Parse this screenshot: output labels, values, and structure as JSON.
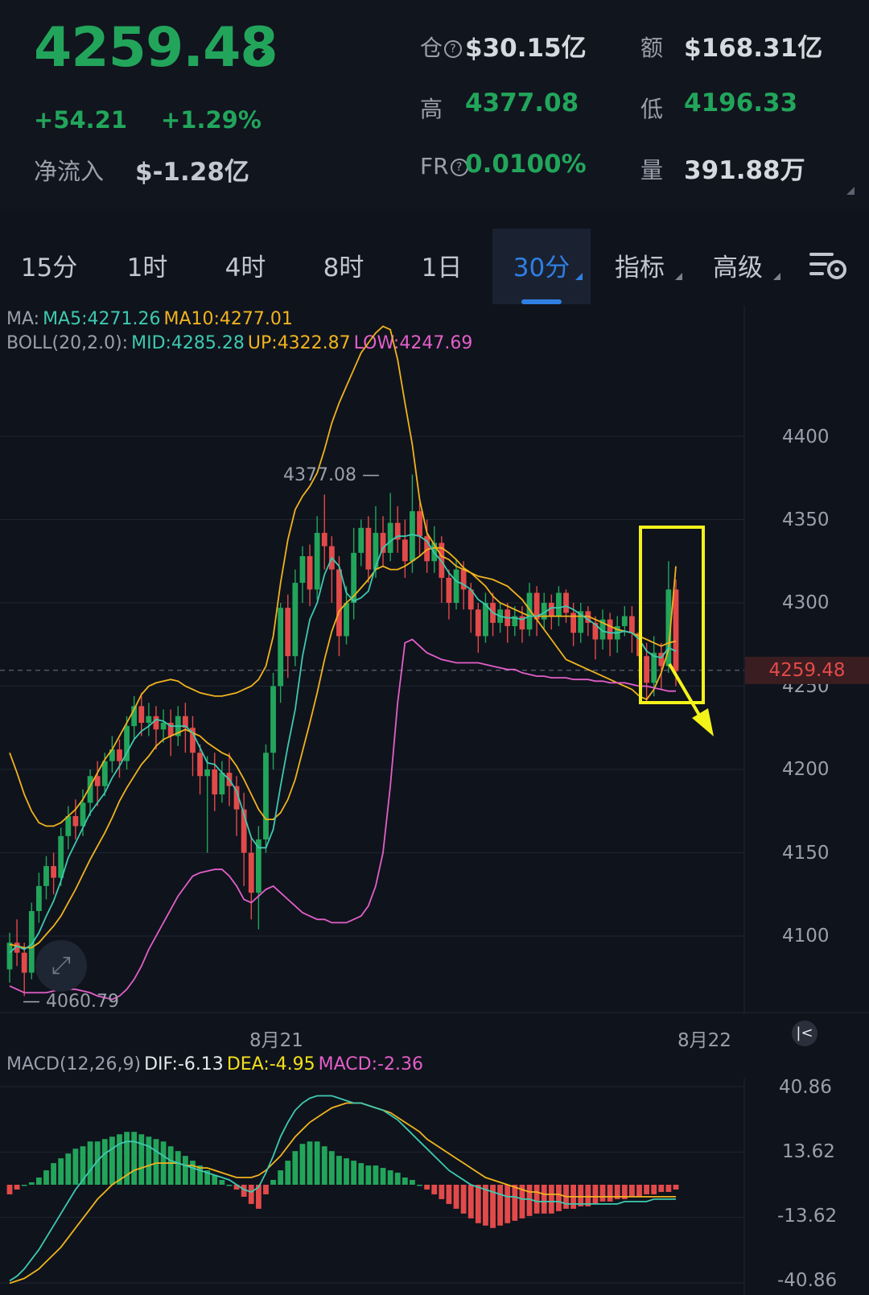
{
  "ticker": {
    "last_price": "4259.48",
    "change": "+54.21",
    "change_pct": "+1.29%",
    "net_inflow_label": "净流入",
    "net_inflow_value": "$-1.28亿"
  },
  "stats": {
    "oi_label": "仓",
    "oi_value": "$30.15亿",
    "turnover_label": "额",
    "turnover_value": "$168.31亿",
    "high_label": "高",
    "high_value": "4377.08",
    "low_label": "低",
    "low_value": "4196.33",
    "fr_label": "FR",
    "fr_value": "0.0100%",
    "volume_label": "量",
    "volume_value": "391.88万"
  },
  "tabs": [
    {
      "label": "15分"
    },
    {
      "label": "1时"
    },
    {
      "label": "4时"
    },
    {
      "label": "8时"
    },
    {
      "label": "1日"
    },
    {
      "label": "30分"
    },
    {
      "label": "指标"
    },
    {
      "label": "高级"
    }
  ],
  "indicators": {
    "ma_prefix": "MA:",
    "ma5": "MA5:4271.26",
    "ma10": "MA10:4277.01",
    "boll_prefix": "BOLL(20,2.0):",
    "boll_mid": "MID:4285.28",
    "boll_up": "UP:4322.87",
    "boll_low": "LOW:4247.69",
    "macd_prefix": "MACD(12,26,9)",
    "macd_dif": "DIF:-6.13",
    "macd_dea": "DEA:-4.95",
    "macd_val": "MACD:-2.36"
  },
  "annotations": {
    "high_marker": "4377.08",
    "low_marker": "4060.79",
    "current_price_tag": "4259.48"
  },
  "colors": {
    "up": "#22a55b",
    "down": "#e24a4a",
    "ma5": "#3ec9b0",
    "ma10": "#f0b31e",
    "boll_low": "#e35fc9",
    "accent": "#2f7fe2",
    "highlight": "#f3f31b"
  },
  "chart_data": {
    "type": "candlestick",
    "price_axis_ticks": [
      "4400",
      "4350",
      "4300",
      "4250",
      "4200",
      "4150",
      "4100"
    ],
    "date_labels": [
      "8月21",
      "8月22"
    ],
    "macd_axis_ticks": [
      "40.86",
      "13.62",
      "-13.62",
      "-40.86"
    ],
    "ylim": [
      4030,
      4480
    ],
    "macd_ylim": [
      -41,
      41
    ],
    "candles": [
      [
        4080,
        4096,
        4072,
        4102,
        1
      ],
      [
        4096,
        4090,
        4082,
        4110,
        0
      ],
      [
        4090,
        4078,
        4064,
        4096,
        0
      ],
      [
        4078,
        4115,
        4074,
        4120,
        1
      ],
      [
        4115,
        4130,
        4108,
        4138,
        1
      ],
      [
        4130,
        4142,
        4122,
        4148,
        1
      ],
      [
        4142,
        4135,
        4125,
        4150,
        0
      ],
      [
        4135,
        4160,
        4130,
        4165,
        1
      ],
      [
        4160,
        4172,
        4152,
        4178,
        1
      ],
      [
        4172,
        4166,
        4158,
        4182,
        0
      ],
      [
        4166,
        4180,
        4160,
        4188,
        1
      ],
      [
        4180,
        4196,
        4172,
        4200,
        1
      ],
      [
        4196,
        4190,
        4178,
        4205,
        0
      ],
      [
        4190,
        4205,
        4184,
        4210,
        1
      ],
      [
        4205,
        4212,
        4198,
        4220,
        1
      ],
      [
        4212,
        4205,
        4195,
        4218,
        0
      ],
      [
        4205,
        4226,
        4200,
        4232,
        1
      ],
      [
        4226,
        4238,
        4218,
        4244,
        1
      ],
      [
        4238,
        4228,
        4220,
        4246,
        0
      ],
      [
        4228,
        4232,
        4220,
        4240,
        1
      ],
      [
        4232,
        4224,
        4212,
        4238,
        0
      ],
      [
        4224,
        4228,
        4216,
        4236,
        1
      ],
      [
        4228,
        4220,
        4208,
        4236,
        0
      ],
      [
        4220,
        4232,
        4214,
        4238,
        1
      ],
      [
        4232,
        4225,
        4210,
        4240,
        0
      ],
      [
        4225,
        4210,
        4196,
        4232,
        0
      ],
      [
        4210,
        4196,
        4185,
        4215,
        0
      ],
      [
        4196,
        4200,
        4150,
        4208,
        1
      ],
      [
        4200,
        4185,
        4175,
        4210,
        0
      ],
      [
        4185,
        4198,
        4180,
        4205,
        1
      ],
      [
        4198,
        4190,
        4178,
        4210,
        0
      ],
      [
        4190,
        4176,
        4160,
        4196,
        0
      ],
      [
        4176,
        4150,
        4130,
        4186,
        0
      ],
      [
        4150,
        4126,
        4110,
        4160,
        0
      ],
      [
        4126,
        4158,
        4104,
        4166,
        1
      ],
      [
        4158,
        4210,
        4150,
        4215,
        1
      ],
      [
        4210,
        4250,
        4200,
        4258,
        1
      ],
      [
        4250,
        4297,
        4240,
        4300,
        1
      ],
      [
        4297,
        4268,
        4255,
        4305,
        0
      ],
      [
        4268,
        4312,
        4262,
        4320,
        1
      ],
      [
        4312,
        4328,
        4300,
        4334,
        1
      ],
      [
        4328,
        4308,
        4298,
        4335,
        0
      ],
      [
        4308,
        4342,
        4302,
        4352,
        1
      ],
      [
        4342,
        4334,
        4320,
        4365,
        0
      ],
      [
        4334,
        4320,
        4300,
        4340,
        0
      ],
      [
        4320,
        4280,
        4268,
        4328,
        0
      ],
      [
        4280,
        4300,
        4275,
        4310,
        1
      ],
      [
        4300,
        4330,
        4290,
        4345,
        1
      ],
      [
        4330,
        4345,
        4322,
        4350,
        1
      ],
      [
        4345,
        4320,
        4312,
        4352,
        0
      ],
      [
        4320,
        4342,
        4315,
        4358,
        1
      ],
      [
        4342,
        4330,
        4322,
        4352,
        0
      ],
      [
        4330,
        4348,
        4325,
        4366,
        1
      ],
      [
        4348,
        4338,
        4330,
        4358,
        0
      ],
      [
        4338,
        4325,
        4315,
        4350,
        0
      ],
      [
        4325,
        4355,
        4318,
        4377,
        1
      ],
      [
        4355,
        4340,
        4328,
        4360,
        0
      ],
      [
        4340,
        4325,
        4318,
        4350,
        0
      ],
      [
        4325,
        4336,
        4318,
        4346,
        1
      ],
      [
        4336,
        4315,
        4300,
        4340,
        0
      ],
      [
        4315,
        4300,
        4290,
        4320,
        0
      ],
      [
        4300,
        4320,
        4296,
        4326,
        1
      ],
      [
        4320,
        4308,
        4296,
        4325,
        0
      ],
      [
        4308,
        4296,
        4282,
        4312,
        0
      ],
      [
        4296,
        4280,
        4270,
        4300,
        0
      ],
      [
        4280,
        4300,
        4276,
        4306,
        1
      ],
      [
        4300,
        4288,
        4280,
        4306,
        0
      ],
      [
        4288,
        4296,
        4282,
        4300,
        1
      ],
      [
        4296,
        4286,
        4276,
        4300,
        0
      ],
      [
        4286,
        4292,
        4280,
        4298,
        1
      ],
      [
        4292,
        4284,
        4276,
        4298,
        0
      ],
      [
        4284,
        4306,
        4280,
        4312,
        1
      ],
      [
        4306,
        4290,
        4280,
        4310,
        0
      ],
      [
        4290,
        4300,
        4284,
        4306,
        1
      ],
      [
        4300,
        4292,
        4284,
        4305,
        0
      ],
      [
        4292,
        4306,
        4286,
        4310,
        1
      ],
      [
        4306,
        4294,
        4288,
        4308,
        0
      ],
      [
        4294,
        4282,
        4274,
        4300,
        0
      ],
      [
        4282,
        4295,
        4276,
        4300,
        1
      ],
      [
        4295,
        4288,
        4280,
        4298,
        0
      ],
      [
        4288,
        4278,
        4266,
        4292,
        0
      ],
      [
        4278,
        4290,
        4272,
        4296,
        1
      ],
      [
        4290,
        4278,
        4268,
        4294,
        0
      ],
      [
        4278,
        4286,
        4270,
        4292,
        1
      ],
      [
        4286,
        4292,
        4280,
        4298,
        1
      ],
      [
        4292,
        4282,
        4270,
        4298,
        0
      ],
      [
        4282,
        4268,
        4255,
        4290,
        0
      ],
      [
        4268,
        4252,
        4240,
        4276,
        0
      ],
      [
        4252,
        4270,
        4244,
        4280,
        1
      ],
      [
        4270,
        4262,
        4248,
        4276,
        0
      ],
      [
        4262,
        4308,
        4258,
        4325,
        1
      ],
      [
        4308,
        4259,
        4250,
        4314,
        0
      ]
    ],
    "ma5": [
      4090,
      4094,
      4092,
      4095,
      4102,
      4112,
      4121,
      4133,
      4147,
      4156,
      4165,
      4174,
      4180,
      4186,
      4195,
      4202,
      4210,
      4218,
      4223,
      4226,
      4230,
      4229,
      4226,
      4226,
      4226,
      4222,
      4213,
      4204,
      4203,
      4198,
      4194,
      4187,
      4173,
      4159,
      4153,
      4153,
      4164,
      4190,
      4214,
      4236,
      4268,
      4290,
      4300,
      4317,
      4327,
      4322,
      4306,
      4301,
      4303,
      4307,
      4322,
      4333,
      4337,
      4340,
      4340,
      4341,
      4340,
      4337,
      4330,
      4325,
      4318,
      4313,
      4311,
      4308,
      4302,
      4299,
      4294,
      4292,
      4291,
      4291,
      4290,
      4292,
      4292,
      4294,
      4297,
      4297,
      4298,
      4296,
      4293,
      4290,
      4287,
      4283,
      4282,
      4282,
      4283,
      4282,
      4278,
      4271,
      4268,
      4267,
      4273,
      4271
    ],
    "ma10": [
      4095,
      4094,
      4093,
      4093,
      4096,
      4101,
      4106,
      4112,
      4120,
      4128,
      4137,
      4146,
      4154,
      4162,
      4171,
      4181,
      4189,
      4196,
      4203,
      4208,
      4214,
      4218,
      4220,
      4222,
      4224,
      4222,
      4220,
      4216,
      4213,
      4210,
      4208,
      4202,
      4194,
      4185,
      4176,
      4170,
      4170,
      4174,
      4182,
      4194,
      4211,
      4228,
      4246,
      4266,
      4283,
      4295,
      4300,
      4304,
      4309,
      4314,
      4320,
      4322,
      4320,
      4320,
      4322,
      4325,
      4328,
      4332,
      4333,
      4333,
      4330,
      4326,
      4321,
      4318,
      4314,
      4310,
      4304,
      4300,
      4298,
      4296,
      4294,
      4292,
      4292,
      4292,
      4292,
      4292,
      4292,
      4292,
      4292,
      4292,
      4290,
      4288,
      4286,
      4284,
      4283,
      4282,
      4280,
      4278,
      4276,
      4274,
      4276,
      4277
    ],
    "boll_up": [
      4210,
      4198,
      4185,
      4175,
      4168,
      4166,
      4166,
      4168,
      4172,
      4176,
      4182,
      4190,
      4198,
      4206,
      4212,
      4220,
      4228,
      4236,
      4245,
      4250,
      4252,
      4253,
      4254,
      4253,
      4250,
      4248,
      4246,
      4245,
      4244,
      4244,
      4245,
      4246,
      4248,
      4250,
      4254,
      4262,
      4280,
      4312,
      4338,
      4356,
      4364,
      4370,
      4378,
      4392,
      4408,
      4420,
      4430,
      4440,
      4450,
      4456,
      4462,
      4466,
      4464,
      4446,
      4420,
      4395,
      4362,
      4342,
      4335,
      4328,
      4326,
      4322,
      4320,
      4318,
      4316,
      4315,
      4314,
      4312,
      4310,
      4306,
      4302,
      4296,
      4290,
      4284,
      4278,
      4272,
      4266,
      4264,
      4262,
      4260,
      4258,
      4256,
      4254,
      4252,
      4250,
      4248,
      4244,
      4242,
      4248,
      4258,
      4272,
      4322
    ],
    "boll_low": [
      4070,
      4068,
      4066,
      4066,
      4066,
      4066,
      4067,
      4068,
      4068,
      4068,
      4067,
      4066,
      4064,
      4063,
      4062,
      4064,
      4068,
      4074,
      4082,
      4092,
      4100,
      4108,
      4116,
      4124,
      4130,
      4136,
      4138,
      4139,
      4140,
      4140,
      4136,
      4130,
      4122,
      4120,
      4124,
      4128,
      4130,
      4126,
      4122,
      4118,
      4114,
      4112,
      4110,
      4110,
      4108,
      4108,
      4108,
      4110,
      4112,
      4118,
      4130,
      4150,
      4190,
      4240,
      4276,
      4278,
      4274,
      4270,
      4268,
      4266,
      4265,
      4264,
      4264,
      4264,
      4264,
      4263,
      4262,
      4261,
      4260,
      4260,
      4258,
      4257,
      4256,
      4256,
      4255,
      4255,
      4255,
      4254,
      4254,
      4254,
      4253,
      4253,
      4252,
      4252,
      4252,
      4251,
      4250,
      4250,
      4249,
      4248,
      4247,
      4247
    ],
    "macd_hist": [
      -4,
      -2,
      0,
      1,
      3,
      6,
      9,
      11,
      13,
      15,
      16,
      18,
      18,
      19,
      20,
      21,
      22,
      22,
      21,
      20,
      19,
      18,
      16,
      14,
      12,
      10,
      8,
      6,
      4,
      2,
      0,
      -2,
      -5,
      -8,
      -10,
      -4,
      2,
      6,
      10,
      14,
      17,
      18,
      18,
      16,
      14,
      12,
      11,
      10,
      9,
      8,
      8,
      7,
      6,
      5,
      3,
      2,
      0,
      -2,
      -4,
      -6,
      -8,
      -10,
      -12,
      -14,
      -16,
      -17,
      -18,
      -17,
      -16,
      -15,
      -14,
      -13,
      -12,
      -12,
      -12,
      -11,
      -10,
      -10,
      -9,
      -9,
      -8,
      -7,
      -7,
      -6,
      -6,
      -5,
      -5,
      -4,
      -4,
      -3,
      -3,
      -2
    ],
    "macd_dif": [
      -40,
      -38,
      -35,
      -31,
      -27,
      -22,
      -17,
      -12,
      -7,
      -2,
      2,
      6,
      10,
      13,
      15,
      17,
      18,
      18,
      17,
      16,
      14,
      12,
      10,
      9,
      8,
      7,
      6,
      5,
      4,
      3,
      2,
      0,
      -2,
      -3,
      -1,
      5,
      12,
      20,
      26,
      31,
      34,
      36,
      37,
      37,
      37,
      36,
      35,
      34,
      34,
      33,
      32,
      31,
      29,
      27,
      24,
      21,
      18,
      15,
      12,
      9,
      6,
      4,
      2,
      0,
      -1,
      -2,
      -3,
      -4,
      -5,
      -5,
      -6,
      -6,
      -7,
      -7,
      -7,
      -7,
      -8,
      -8,
      -8,
      -8,
      -8,
      -8,
      -8,
      -8,
      -7,
      -7,
      -7,
      -7,
      -6,
      -6,
      -6,
      -6
    ],
    "macd_dea": [
      -41,
      -40,
      -39,
      -37,
      -35,
      -32,
      -29,
      -26,
      -22,
      -18,
      -14,
      -10,
      -6,
      -3,
      0,
      2,
      4,
      6,
      7,
      8,
      9,
      9,
      9,
      9,
      8,
      8,
      7,
      7,
      6,
      5,
      4,
      3,
      3,
      3,
      4,
      6,
      9,
      12,
      16,
      20,
      23,
      26,
      28,
      30,
      32,
      33,
      34,
      34,
      34,
      33,
      32,
      31,
      30,
      28,
      26,
      24,
      22,
      19,
      17,
      15,
      13,
      11,
      9,
      7,
      5,
      3,
      2,
      1,
      0,
      -1,
      -2,
      -3,
      -3,
      -4,
      -4,
      -4,
      -5,
      -5,
      -5,
      -5,
      -5,
      -5,
      -5,
      -5,
      -5,
      -5,
      -5,
      -5,
      -5,
      -5,
      -5,
      -5
    ]
  }
}
